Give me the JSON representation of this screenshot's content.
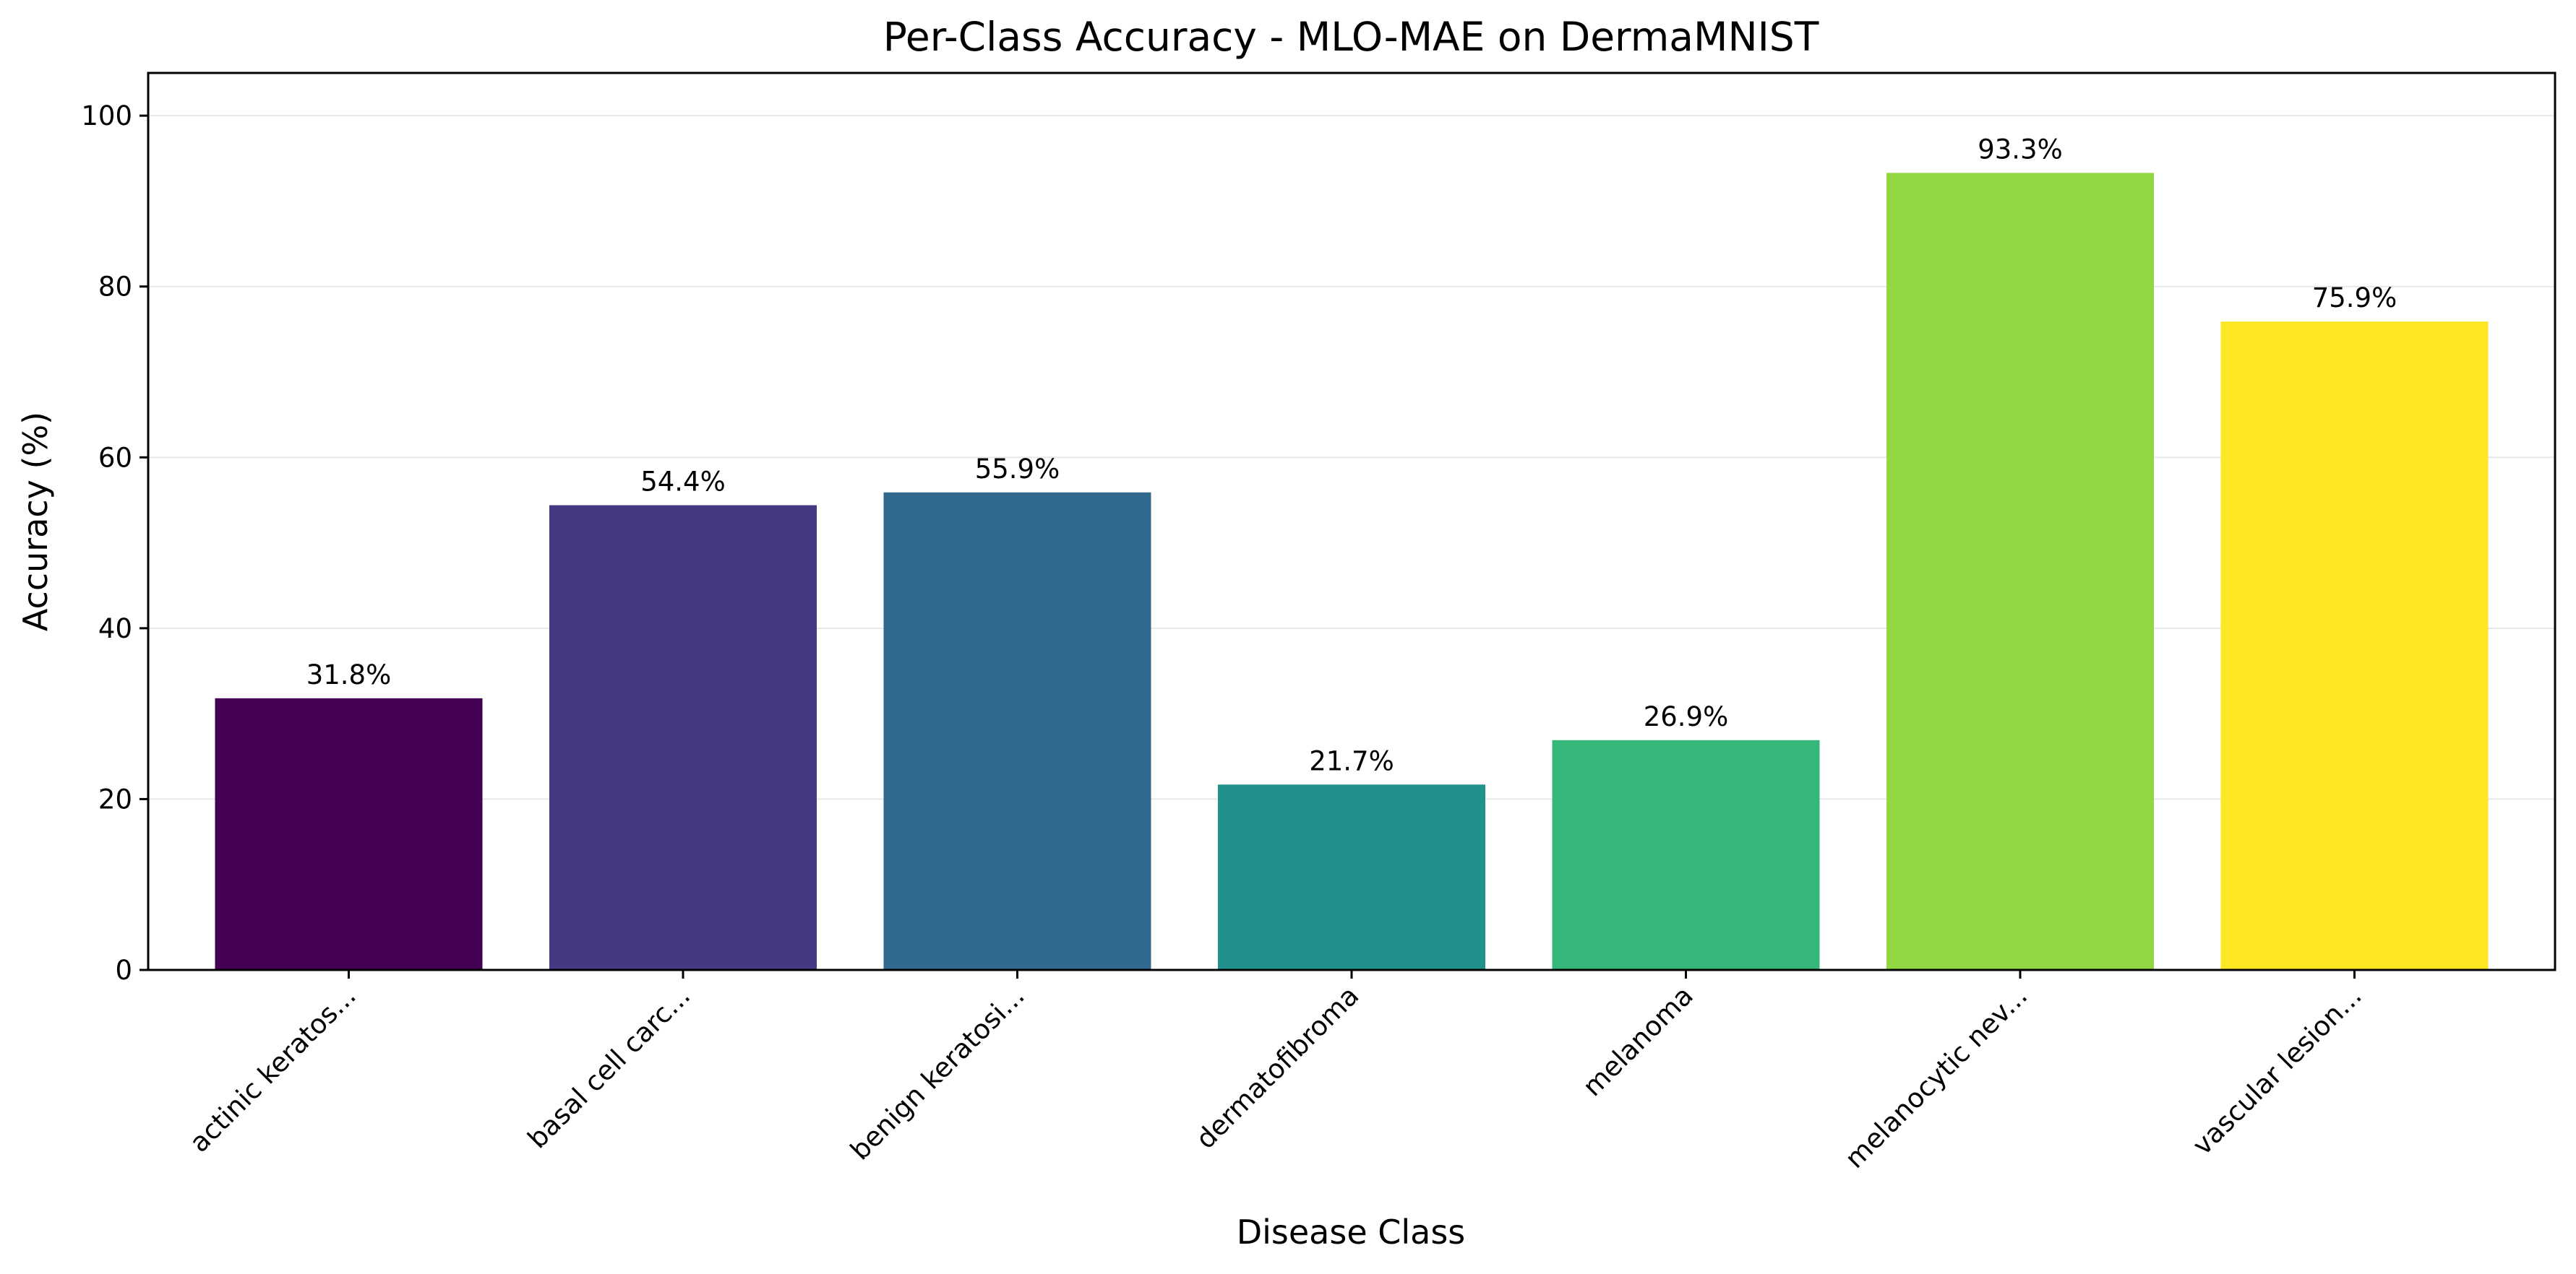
{
  "chart_data": {
    "type": "bar",
    "title": "Per-Class Accuracy - MLO-MAE on DermaMNIST",
    "xlabel": "Disease Class",
    "ylabel": "Accuracy (%)",
    "categories": [
      "actinic keratos...",
      "basal cell carc...",
      "benign keratosi...",
      "dermatofibroma",
      "melanoma",
      "melanocytic nev...",
      "vascular lesion..."
    ],
    "values": [
      31.8,
      54.4,
      55.9,
      21.7,
      26.9,
      93.3,
      75.9
    ],
    "value_labels": [
      "31.8%",
      "54.4%",
      "55.9%",
      "21.7%",
      "26.9%",
      "93.3%",
      "75.9%"
    ],
    "colors": [
      "#440154",
      "#443983",
      "#31688e",
      "#21918c",
      "#35b779",
      "#90d743",
      "#fde725"
    ],
    "ylim": [
      0,
      105
    ],
    "yticks": [
      0,
      20,
      40,
      60,
      80,
      100
    ],
    "grid": "horizontal",
    "legend": "none"
  }
}
